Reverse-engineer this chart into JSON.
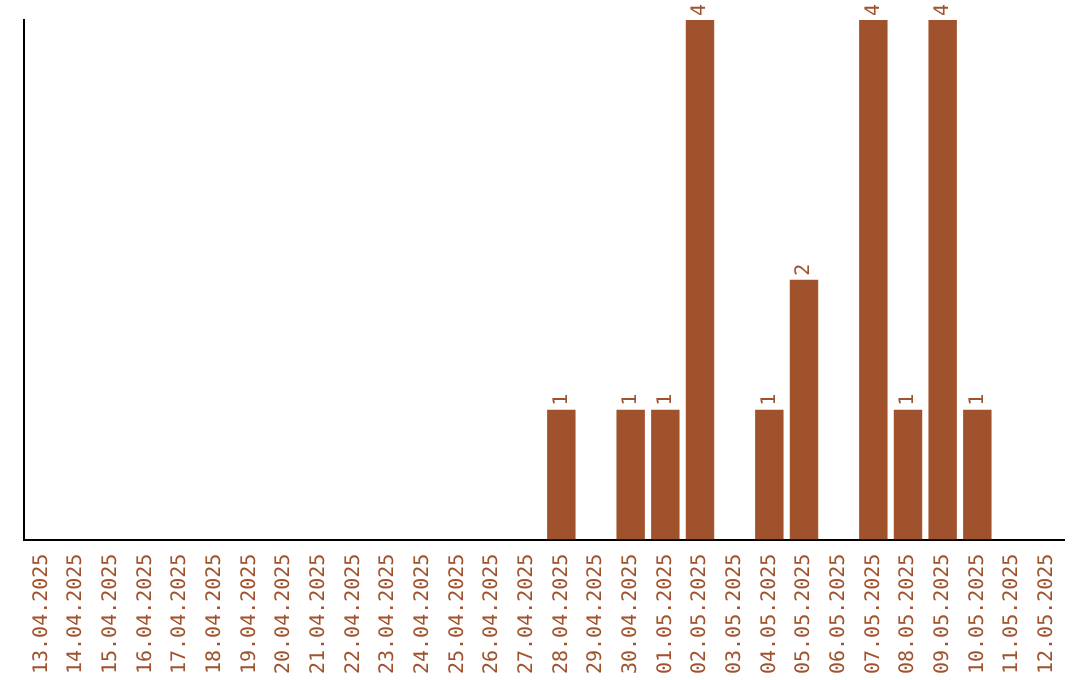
{
  "chart_data": {
    "type": "bar",
    "categories": [
      "13.04.2025",
      "14.04.2025",
      "15.04.2025",
      "16.04.2025",
      "17.04.2025",
      "18.04.2025",
      "19.04.2025",
      "20.04.2025",
      "21.04.2025",
      "22.04.2025",
      "23.04.2025",
      "24.04.2025",
      "25.04.2025",
      "26.04.2025",
      "27.04.2025",
      "28.04.2025",
      "29.04.2025",
      "30.04.2025",
      "01.05.2025",
      "02.05.2025",
      "03.05.2025",
      "04.05.2025",
      "05.05.2025",
      "06.05.2025",
      "07.05.2025",
      "08.05.2025",
      "09.05.2025",
      "10.05.2025",
      "11.05.2025",
      "12.05.2025"
    ],
    "values": [
      null,
      null,
      null,
      null,
      null,
      null,
      null,
      null,
      null,
      null,
      null,
      null,
      null,
      null,
      null,
      1,
      null,
      1,
      1,
      4,
      null,
      1,
      2,
      null,
      4,
      1,
      4,
      1,
      null,
      null
    ],
    "value_labels": [
      null,
      null,
      null,
      null,
      null,
      null,
      null,
      null,
      null,
      null,
      null,
      null,
      null,
      null,
      null,
      "1",
      null,
      "1",
      "1",
      "4",
      null,
      "1",
      "2",
      null,
      "4",
      "1",
      "4",
      "1",
      null,
      null
    ],
    "color": "#a0522d",
    "grid": false,
    "legend": false,
    "tick_labels": "x"
  }
}
